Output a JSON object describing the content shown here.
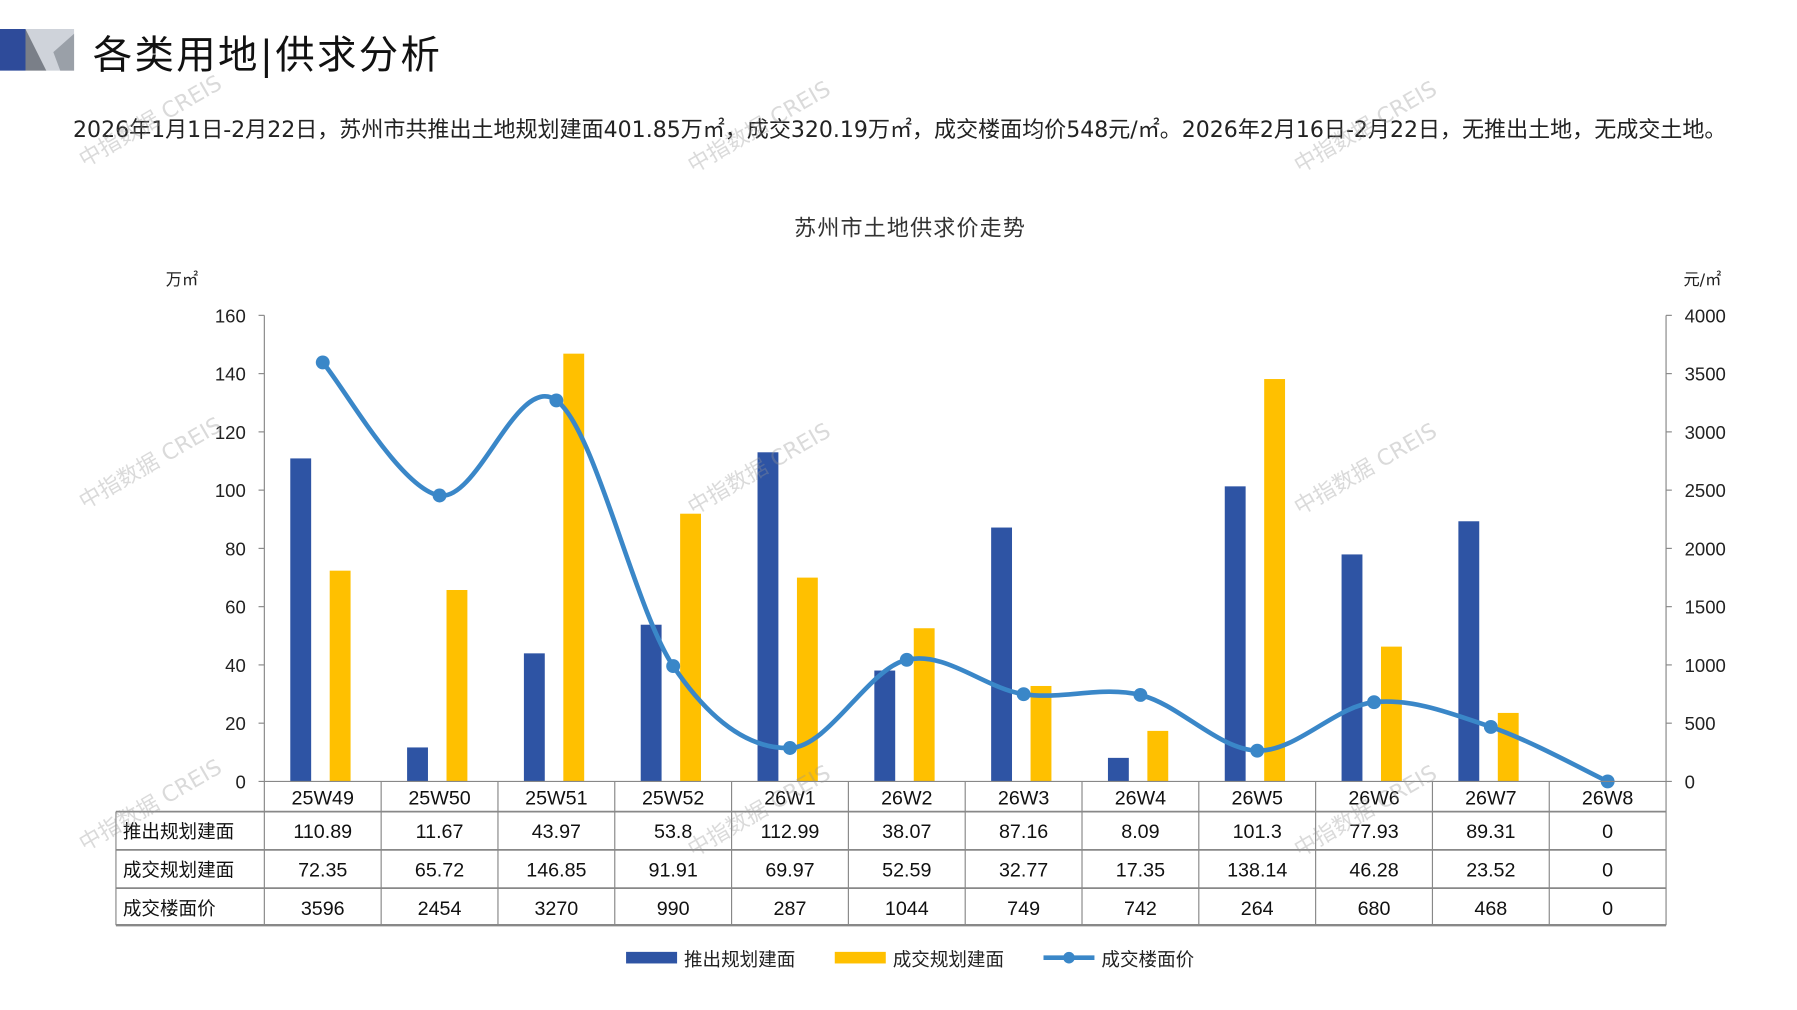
{
  "header": {
    "title": "各类用地|供求分析"
  },
  "summary": "2026年1月1日-2月22日，苏州市共推出土地规划建面401.85万㎡，成交320.19万㎡，成交楼面均价548元/㎡。2026年2月16日-2月22日，无推出土地，无成交土地。",
  "watermark": "中指数据 CREIS",
  "chart_data": {
    "type": "bar",
    "title": "苏州市土地供求价走势",
    "ylabel": "万㎡",
    "y2label": "元/㎡",
    "ylim": [
      0,
      160
    ],
    "y2lim": [
      0,
      4000
    ],
    "yticks": [
      0,
      20,
      40,
      60,
      80,
      100,
      120,
      140,
      160
    ],
    "y2ticks": [
      0,
      500,
      1000,
      1500,
      2000,
      2500,
      3000,
      3500,
      4000
    ],
    "categories": [
      "25W49",
      "25W50",
      "25W51",
      "25W52",
      "26W1",
      "26W2",
      "26W3",
      "26W4",
      "26W5",
      "26W6",
      "26W7",
      "26W8"
    ],
    "series": [
      {
        "name": "推出规划建面",
        "type": "bar",
        "axis": "left",
        "color": "#2E54A4",
        "values": [
          110.89,
          11.67,
          43.97,
          53.8,
          112.99,
          38.07,
          87.16,
          8.09,
          101.3,
          77.93,
          89.31,
          0
        ],
        "labels": [
          "110.89",
          "11.67",
          "43.97",
          "53.8",
          "112.99",
          "38.07",
          "87.16",
          "8.09",
          "101.3",
          "77.93",
          "89.31",
          "0"
        ]
      },
      {
        "name": "成交规划建面",
        "type": "bar",
        "axis": "left",
        "color": "#FFC000",
        "values": [
          72.35,
          65.72,
          146.85,
          91.91,
          69.97,
          52.59,
          32.77,
          17.35,
          138.14,
          46.28,
          23.52,
          0
        ],
        "labels": [
          "72.35",
          "65.72",
          "146.85",
          "91.91",
          "69.97",
          "52.59",
          "32.77",
          "17.35",
          "138.14",
          "46.28",
          "23.52",
          "0"
        ]
      },
      {
        "name": "成交楼面价",
        "type": "line",
        "axis": "right",
        "color": "#3A87C8",
        "values": [
          3596,
          2454,
          3270,
          990,
          287,
          1044,
          749,
          742,
          264,
          680,
          468,
          0
        ],
        "labels": [
          "3596",
          "2454",
          "3270",
          "990",
          "287",
          "1044",
          "749",
          "742",
          "264",
          "680",
          "468",
          "0"
        ]
      }
    ],
    "legend": "bottom",
    "data_table": true
  }
}
